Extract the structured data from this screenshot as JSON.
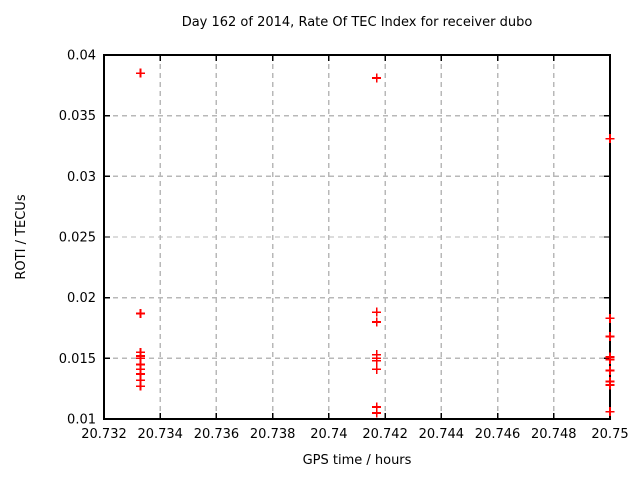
{
  "chart_data": {
    "type": "scatter",
    "title": "Day 162 of 2014, Rate Of TEC Index for receiver dubo",
    "xlabel": "GPS time / hours",
    "ylabel": "ROTI / TECUs",
    "xlim": [
      20.732,
      20.75
    ],
    "ylim": [
      0.01,
      0.04
    ],
    "xticks": [
      20.732,
      20.734,
      20.736,
      20.738,
      20.74,
      20.742,
      20.744,
      20.746,
      20.748,
      20.75
    ],
    "xtick_labels": [
      "20.732",
      "20.734",
      "20.736",
      "20.738",
      "20.74",
      "20.742",
      "20.744",
      "20.746",
      "20.748",
      "20.75"
    ],
    "yticks": [
      0.01,
      0.015,
      0.02,
      0.025,
      0.03,
      0.035,
      0.04
    ],
    "ytick_labels": [
      "0.01",
      "0.015",
      "0.02",
      "0.025",
      "0.03",
      "0.035",
      "0.04"
    ],
    "grid": true,
    "legend": "none",
    "marker": "plus",
    "marker_color": "#ff0000",
    "grid_color": "#b8b8b8",
    "axis_color": "#000000",
    "background_color": "#ffffff",
    "series": [
      {
        "name": "ROTI",
        "points": [
          [
            20.7333,
            0.0385
          ],
          [
            20.7333,
            0.0187
          ],
          [
            20.7333,
            0.0155
          ],
          [
            20.7333,
            0.0152
          ],
          [
            20.7333,
            0.015
          ],
          [
            20.7333,
            0.0145
          ],
          [
            20.7333,
            0.0141
          ],
          [
            20.7333,
            0.0137
          ],
          [
            20.7333,
            0.0132
          ],
          [
            20.7333,
            0.0127
          ],
          [
            20.7417,
            0.0381
          ],
          [
            20.7417,
            0.0188
          ],
          [
            20.7417,
            0.018
          ],
          [
            20.7417,
            0.0153
          ],
          [
            20.7417,
            0.015
          ],
          [
            20.7417,
            0.0148
          ],
          [
            20.7417,
            0.0141
          ],
          [
            20.7417,
            0.011
          ],
          [
            20.7417,
            0.0105
          ],
          [
            20.75,
            0.0331
          ],
          [
            20.75,
            0.0183
          ],
          [
            20.75,
            0.0168
          ],
          [
            20.75,
            0.0151
          ],
          [
            20.75,
            0.0149
          ],
          [
            20.75,
            0.014
          ],
          [
            20.75,
            0.0131
          ],
          [
            20.75,
            0.0128
          ],
          [
            20.75,
            0.0106
          ]
        ]
      }
    ]
  }
}
